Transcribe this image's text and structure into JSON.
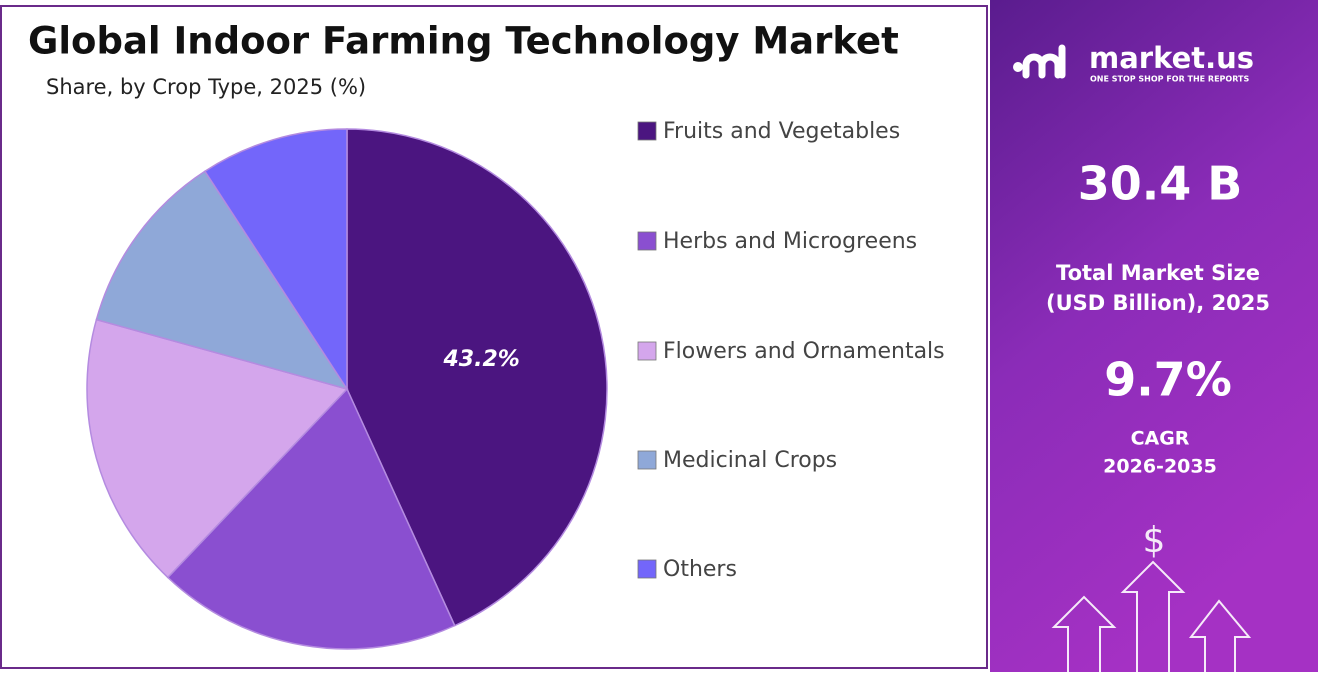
{
  "chart_data": {
    "type": "pie",
    "title": "Global Indoor Farming Technology Market",
    "subtitle": "Share, by Crop Type, 2025 (%)",
    "categories": [
      "Fruits and Vegetables",
      "Herbs and Microgreens",
      "Flowers and Ornamentals",
      "Medicinal Crops",
      "Others"
    ],
    "values": [
      43.2,
      18.9,
      17.2,
      11.5,
      9.2
    ],
    "value_labels": [
      "43.2%",
      null,
      null,
      null,
      null
    ],
    "colors": [
      "#4b1580",
      "#8a4fd0",
      "#d4a6ec",
      "#8fa8d8",
      "#7366fa"
    ]
  },
  "sidebar": {
    "brand": "market.us",
    "tagline": "ONE STOP SHOP FOR THE REPORTS",
    "market_size": "30.4 B",
    "market_size_label": [
      "Total Market Size",
      "(USD Billion), 2025"
    ],
    "cagr": "9.7%",
    "cagr_label": [
      "CAGR",
      "2026-2035"
    ]
  }
}
